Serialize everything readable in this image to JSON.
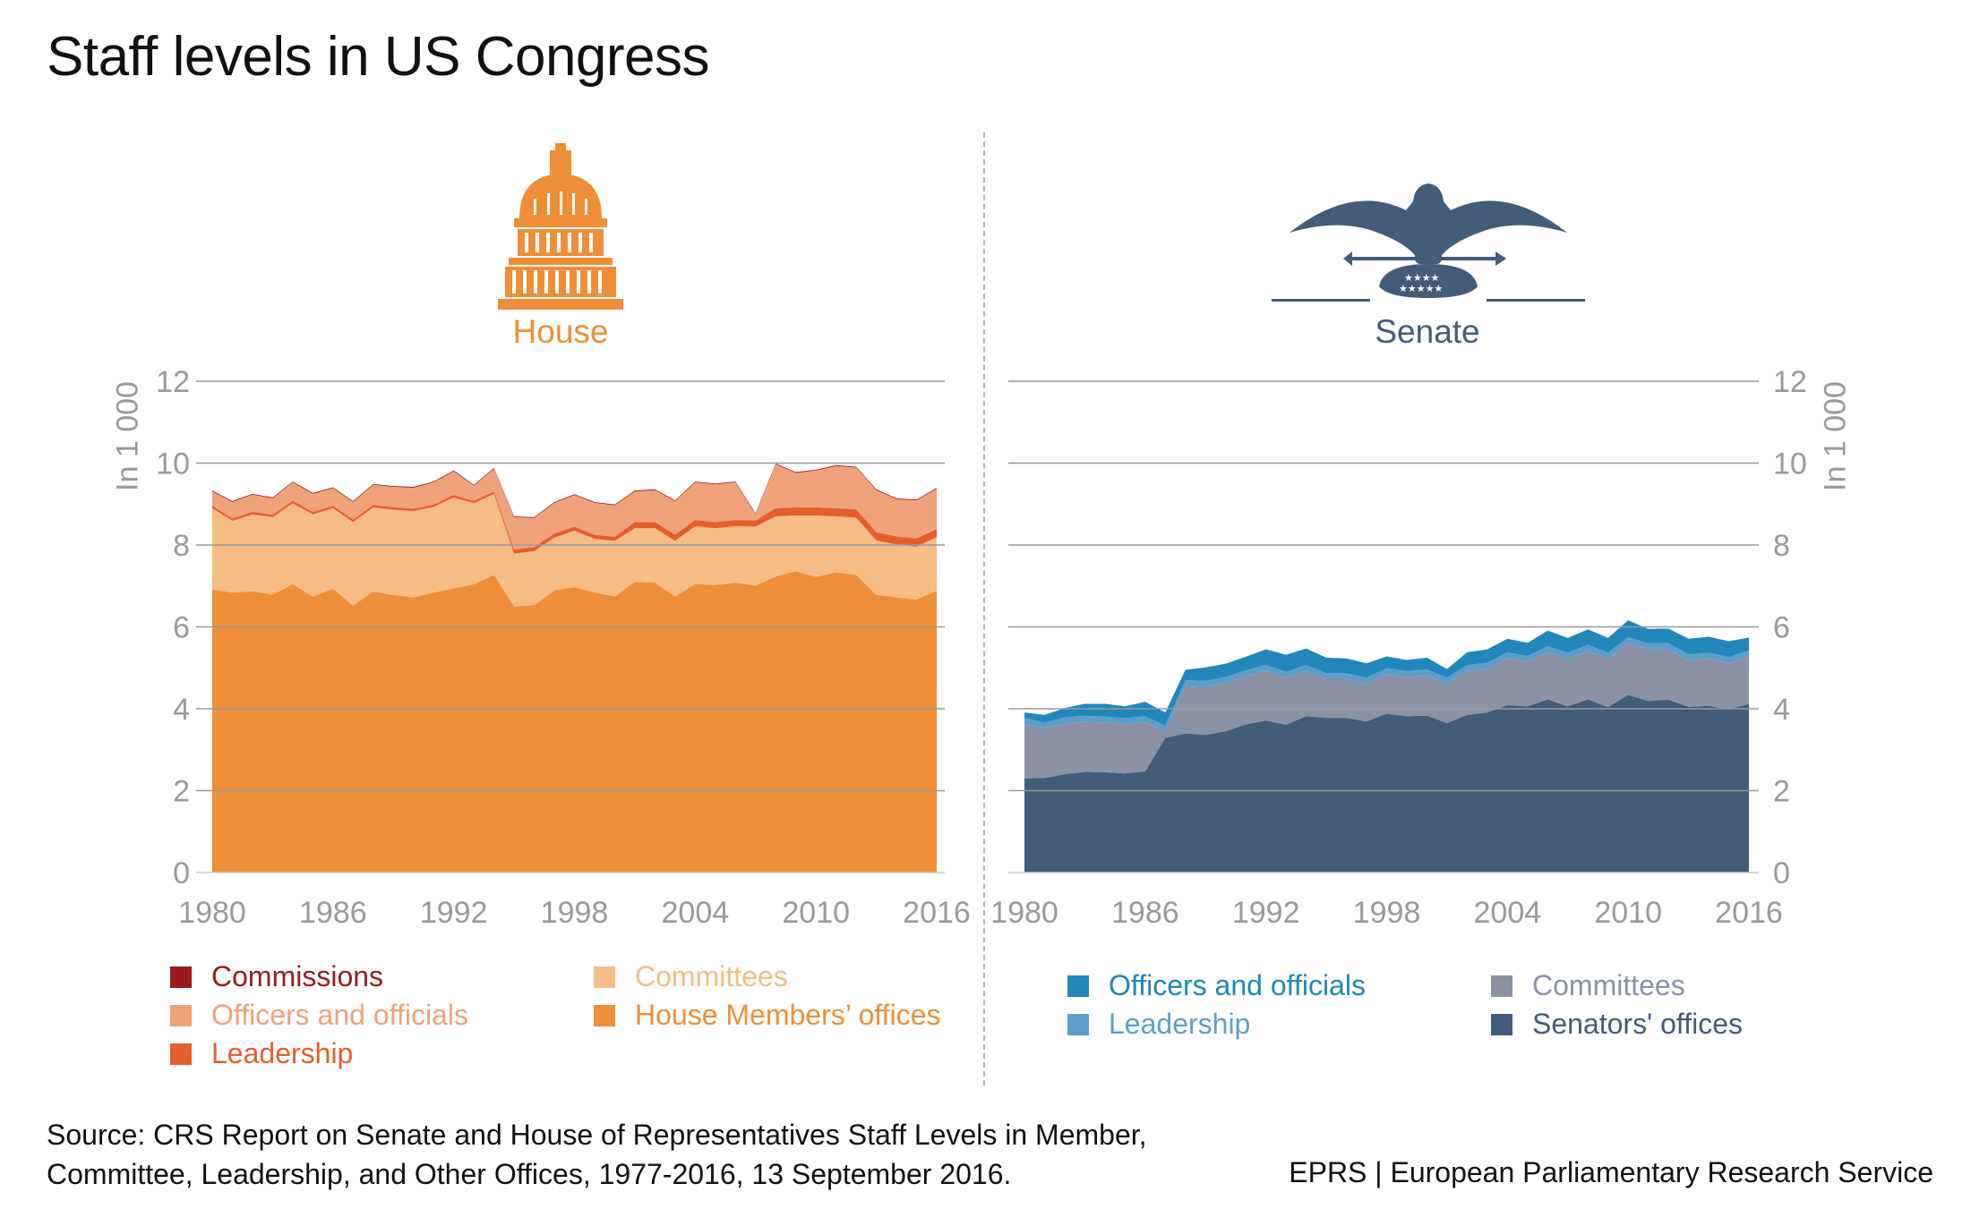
{
  "title": "Staff levels in US Congress",
  "source": [
    "Source: CRS Report on Senate and House of Representatives Staff Levels in Member,",
    "Committee, Leadership, and Other Offices, 1977-2016, 13 September 2016."
  ],
  "credit": "EPRS | European Parliamentary Research Service",
  "chart_data": [
    {
      "type": "area",
      "stacked": true,
      "title": "House",
      "ylabel": "In 1 000",
      "ylim": [
        0,
        12
      ],
      "yticks": [
        "0",
        "2",
        "4",
        "6",
        "8",
        "10",
        "12"
      ],
      "xticks": [
        "1980",
        "1986",
        "1992",
        "1998",
        "2004",
        "2010",
        "2016"
      ],
      "x": [
        1980,
        1981,
        1982,
        1983,
        1984,
        1985,
        1986,
        1987,
        1988,
        1989,
        1990,
        1991,
        1992,
        1993,
        1994,
        1995,
        1996,
        1997,
        1998,
        1999,
        2000,
        2001,
        2002,
        2003,
        2004,
        2005,
        2006,
        2007,
        2008,
        2009,
        2010,
        2011,
        2012,
        2013,
        2014,
        2015,
        2016
      ],
      "grid": true,
      "series": [
        {
          "name": "House Members’ offices",
          "color": "#EF8E38",
          "values": [
            6.91,
            6.84,
            6.87,
            6.79,
            7.04,
            6.74,
            6.93,
            6.52,
            6.86,
            6.78,
            6.72,
            6.84,
            6.94,
            7.04,
            7.27,
            6.5,
            6.53,
            6.89,
            6.97,
            6.84,
            6.74,
            7.1,
            7.08,
            6.74,
            7.05,
            7.02,
            7.08,
            7.01,
            7.23,
            7.36,
            7.22,
            7.33,
            7.27,
            6.78,
            6.72,
            6.67,
            6.88
          ]
        },
        {
          "name": "Committees",
          "color": "#F6BC86",
          "values": [
            1.99,
            1.75,
            1.88,
            1.89,
            1.98,
            2.01,
            1.97,
            2.04,
            2.06,
            2.08,
            2.11,
            2.09,
            2.22,
            1.98,
            1.98,
            1.29,
            1.32,
            1.29,
            1.38,
            1.31,
            1.36,
            1.31,
            1.33,
            1.36,
            1.41,
            1.39,
            1.38,
            1.44,
            1.47,
            1.36,
            1.5,
            1.37,
            1.4,
            1.33,
            1.29,
            1.29,
            1.31
          ]
        },
        {
          "name": "Leadership",
          "color": "#E55E2E",
          "values": [
            0.06,
            0.06,
            0.06,
            0.06,
            0.06,
            0.06,
            0.06,
            0.06,
            0.06,
            0.06,
            0.06,
            0.06,
            0.06,
            0.06,
            0.06,
            0.1,
            0.1,
            0.1,
            0.1,
            0.1,
            0.1,
            0.15,
            0.15,
            0.15,
            0.15,
            0.15,
            0.15,
            0.15,
            0.2,
            0.2,
            0.2,
            0.2,
            0.2,
            0.2,
            0.2,
            0.2,
            0.2
          ]
        },
        {
          "name": "Officers and officials",
          "color": "#F0A27B",
          "values": [
            0.35,
            0.4,
            0.42,
            0.4,
            0.45,
            0.44,
            0.43,
            0.43,
            0.49,
            0.5,
            0.51,
            0.54,
            0.58,
            0.37,
            0.55,
            0.79,
            0.71,
            0.75,
            0.77,
            0.78,
            0.77,
            0.75,
            0.78,
            0.82,
            0.92,
            0.92,
            0.92,
            0.15,
            1.07,
            0.84,
            0.9,
            1.03,
            1.02,
            1.03,
            0.91,
            0.93,
            0.99
          ]
        },
        {
          "name": "Commissions",
          "color": "#9B1B1B",
          "values": [
            0.02,
            0.02,
            0.02,
            0.02,
            0.02,
            0.02,
            0.02,
            0.02,
            0.02,
            0.02,
            0.02,
            0.02,
            0.02,
            0.02,
            0.02,
            0.02,
            0.02,
            0.02,
            0.02,
            0.02,
            0.02,
            0.02,
            0.02,
            0.02,
            0.02,
            0.02,
            0.02,
            0.02,
            0.02,
            0.02,
            0.02,
            0.02,
            0.02,
            0.02,
            0.02,
            0.02,
            0.02
          ]
        }
      ],
      "legend_order": [
        "Commissions",
        "Officers and officials",
        "Leadership",
        "Committees",
        "House Members’ offices"
      ]
    },
    {
      "type": "area",
      "stacked": true,
      "title": "Senate",
      "ylabel": "In 1 000",
      "ylim": [
        0,
        12
      ],
      "yticks": [
        "0",
        "2",
        "4",
        "6",
        "8",
        "10",
        "12"
      ],
      "xticks": [
        "1980",
        "1986",
        "1992",
        "1998",
        "2004",
        "2010",
        "2016"
      ],
      "x": [
        1980,
        1981,
        1982,
        1983,
        1984,
        1985,
        1986,
        1987,
        1988,
        1989,
        1990,
        1991,
        1992,
        1993,
        1994,
        1995,
        1996,
        1997,
        1998,
        1999,
        2000,
        2001,
        2002,
        2003,
        2004,
        2005,
        2006,
        2007,
        2008,
        2009,
        2010,
        2011,
        2012,
        2013,
        2014,
        2015,
        2016
      ],
      "grid": true,
      "series": [
        {
          "name": "Senators' offices",
          "color": "#425C7A",
          "values": [
            2.3,
            2.31,
            2.4,
            2.46,
            2.45,
            2.42,
            2.47,
            3.29,
            3.4,
            3.36,
            3.45,
            3.62,
            3.71,
            3.61,
            3.82,
            3.78,
            3.78,
            3.69,
            3.88,
            3.82,
            3.83,
            3.65,
            3.85,
            3.91,
            4.09,
            4.06,
            4.23,
            4.06,
            4.23,
            4.04,
            4.34,
            4.19,
            4.22,
            4.05,
            4.07,
            3.99,
            4.12
          ]
        },
        {
          "name": "Committees",
          "color": "#8B92A4",
          "values": [
            1.33,
            1.2,
            1.24,
            1.22,
            1.21,
            1.2,
            1.2,
            0.15,
            1.15,
            1.17,
            1.18,
            1.17,
            1.21,
            1.14,
            1.1,
            0.94,
            0.94,
            0.92,
            0.96,
            0.95,
            0.98,
            0.96,
            1.07,
            1.06,
            1.14,
            1.08,
            1.15,
            1.16,
            1.18,
            1.18,
            1.26,
            1.26,
            1.23,
            1.13,
            1.15,
            1.12,
            1.16
          ]
        },
        {
          "name": "Leadership",
          "color": "#5F9ECB",
          "values": [
            0.15,
            0.15,
            0.15,
            0.15,
            0.15,
            0.15,
            0.15,
            0.15,
            0.15,
            0.15,
            0.15,
            0.15,
            0.15,
            0.15,
            0.15,
            0.15,
            0.15,
            0.15,
            0.15,
            0.15,
            0.15,
            0.15,
            0.15,
            0.15,
            0.15,
            0.15,
            0.15,
            0.15,
            0.15,
            0.15,
            0.15,
            0.15,
            0.15,
            0.15,
            0.15,
            0.15,
            0.15
          ]
        },
        {
          "name": "Officers and officials",
          "color": "#2187BB",
          "values": [
            0.13,
            0.19,
            0.23,
            0.29,
            0.31,
            0.29,
            0.35,
            0.32,
            0.25,
            0.33,
            0.32,
            0.33,
            0.38,
            0.42,
            0.4,
            0.38,
            0.36,
            0.35,
            0.29,
            0.27,
            0.29,
            0.21,
            0.31,
            0.33,
            0.33,
            0.32,
            0.38,
            0.36,
            0.38,
            0.36,
            0.41,
            0.35,
            0.36,
            0.38,
            0.39,
            0.39,
            0.31
          ]
        }
      ],
      "legend_order": [
        "Officers and officials",
        "Leadership",
        "Committees",
        "Senators' offices"
      ]
    }
  ]
}
